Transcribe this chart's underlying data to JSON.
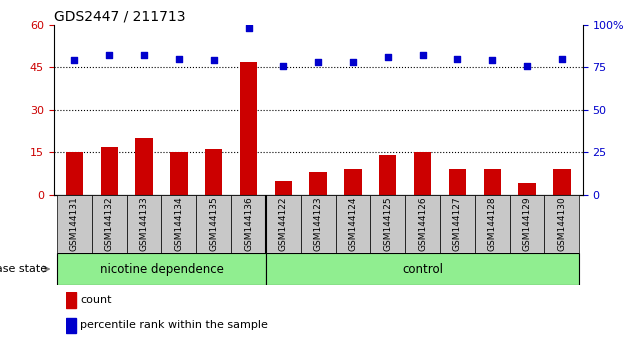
{
  "title": "GDS2447 / 211713",
  "samples": [
    "GSM144131",
    "GSM144132",
    "GSM144133",
    "GSM144134",
    "GSM144135",
    "GSM144136",
    "GSM144122",
    "GSM144123",
    "GSM144124",
    "GSM144125",
    "GSM144126",
    "GSM144127",
    "GSM144128",
    "GSM144129",
    "GSM144130"
  ],
  "counts": [
    15,
    17,
    20,
    15,
    16,
    47,
    5,
    8,
    9,
    14,
    15,
    9,
    9,
    4,
    9
  ],
  "percentiles": [
    79,
    82,
    82,
    80,
    79,
    98,
    76,
    78,
    78,
    81,
    82,
    80,
    79,
    76,
    80
  ],
  "groups": [
    {
      "label": "nicotine dependence",
      "start": 0,
      "end": 6,
      "color": "#90EE90"
    },
    {
      "label": "control",
      "start": 6,
      "end": 15,
      "color": "#90EE90"
    }
  ],
  "bar_color": "#CC0000",
  "dot_color": "#0000CC",
  "left_ylim": [
    0,
    60
  ],
  "right_ylim": [
    0,
    100
  ],
  "left_yticks": [
    0,
    15,
    30,
    45,
    60
  ],
  "right_yticks": [
    0,
    25,
    50,
    75,
    100
  ],
  "left_ytick_labels": [
    "0",
    "15",
    "30",
    "45",
    "60"
  ],
  "right_ytick_labels": [
    "0",
    "25",
    "50",
    "75",
    "100%"
  ],
  "grid_values": [
    15,
    30,
    45
  ],
  "bar_width": 0.5,
  "tick_color_left": "#CC0000",
  "tick_color_right": "#0000CC",
  "legend_items": [
    {
      "color": "#CC0000",
      "label": "count"
    },
    {
      "color": "#0000CC",
      "label": "percentile rank within the sample"
    }
  ],
  "disease_state_label": "disease state",
  "label_box_color": "#C8C8C8"
}
